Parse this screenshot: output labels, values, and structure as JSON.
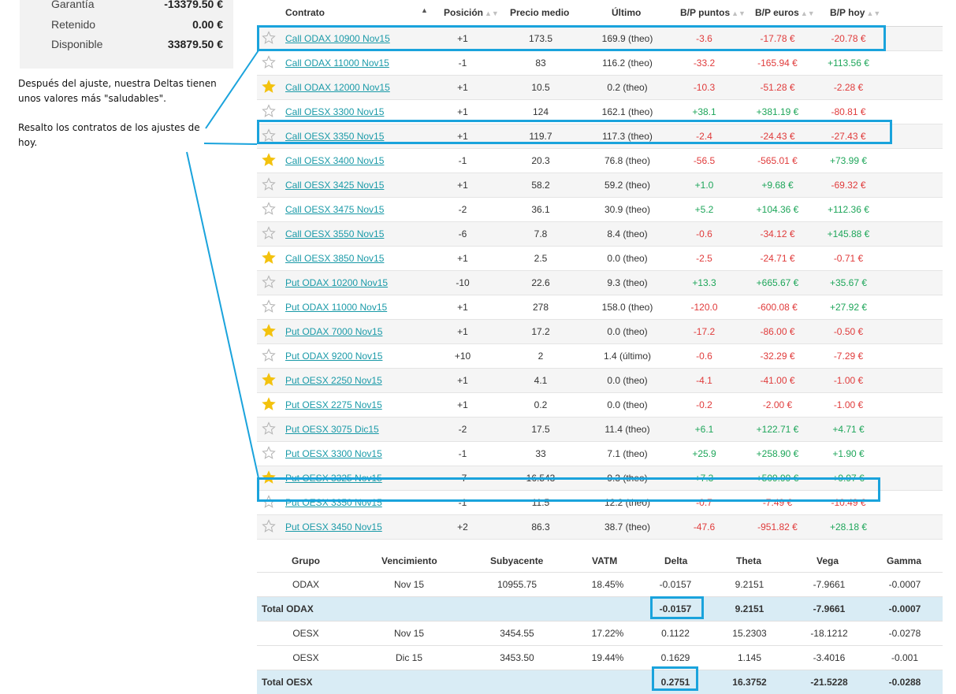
{
  "summary": [
    {
      "label": "Garantía",
      "value": "-13379.50 €"
    },
    {
      "label": "Retenido",
      "value": "0.00 €"
    },
    {
      "label": "Disponible",
      "value": "33879.50 €"
    }
  ],
  "annotation": {
    "line1": "Después del ajuste, nuestra Deltas tienen",
    "line2": "unos valores más \"saludables\".",
    "line3": "Resalto los contratos de los ajustes de",
    "line4": "hoy."
  },
  "positions": {
    "headers": {
      "contrato": "Contrato",
      "posicion": "Posición",
      "precio": "Precio medio",
      "ultimo": "Último",
      "bp_puntos": "B/P puntos",
      "bp_euros": "B/P euros",
      "bp_hoy": "B/P hoy"
    },
    "rows": [
      {
        "fav": false,
        "contrato": "Call ODAX 10900 Nov15",
        "pos": "+1",
        "precio": "173.5",
        "ultimo": "169.9 (theo)",
        "pts": "-3.6",
        "eur": "-17.78 €",
        "hoy": "-20.78 €",
        "pts_c": "neg",
        "eur_c": "neg",
        "hoy_c": "neg"
      },
      {
        "fav": false,
        "contrato": "Call ODAX 11000 Nov15",
        "pos": "-1",
        "precio": "83",
        "ultimo": "116.2 (theo)",
        "pts": "-33.2",
        "eur": "-165.94 €",
        "hoy": "+113.56 €",
        "pts_c": "neg",
        "eur_c": "neg",
        "hoy_c": "grn"
      },
      {
        "fav": true,
        "contrato": "Call ODAX 12000 Nov15",
        "pos": "+1",
        "precio": "10.5",
        "ultimo": "0.2 (theo)",
        "pts": "-10.3",
        "eur": "-51.28 €",
        "hoy": "-2.28 €",
        "pts_c": "neg",
        "eur_c": "neg",
        "hoy_c": "neg"
      },
      {
        "fav": false,
        "contrato": "Call OESX 3300 Nov15",
        "pos": "+1",
        "precio": "124",
        "ultimo": "162.1 (theo)",
        "pts": "+38.1",
        "eur": "+381.19 €",
        "hoy": "-80.81 €",
        "pts_c": "grn",
        "eur_c": "grn",
        "hoy_c": "neg"
      },
      {
        "fav": false,
        "contrato": "Call OESX 3350 Nov15",
        "pos": "+1",
        "precio": "119.7",
        "ultimo": "117.3 (theo)",
        "pts": "-2.4",
        "eur": "-24.43 €",
        "hoy": "-27.43 €",
        "pts_c": "neg",
        "eur_c": "neg",
        "hoy_c": "neg"
      },
      {
        "fav": true,
        "contrato": "Call OESX 3400 Nov15",
        "pos": "-1",
        "precio": "20.3",
        "ultimo": "76.8 (theo)",
        "pts": "-56.5",
        "eur": "-565.01 €",
        "hoy": "+73.99 €",
        "pts_c": "neg",
        "eur_c": "neg",
        "hoy_c": "grn"
      },
      {
        "fav": false,
        "contrato": "Call OESX 3425 Nov15",
        "pos": "+1",
        "precio": "58.2",
        "ultimo": "59.2 (theo)",
        "pts": "+1.0",
        "eur": "+9.68 €",
        "hoy": "-69.32 €",
        "pts_c": "grn",
        "eur_c": "grn",
        "hoy_c": "neg"
      },
      {
        "fav": false,
        "contrato": "Call OESX 3475 Nov15",
        "pos": "-2",
        "precio": "36.1",
        "ultimo": "30.9 (theo)",
        "pts": "+5.2",
        "eur": "+104.36 €",
        "hoy": "+112.36 €",
        "pts_c": "grn",
        "eur_c": "grn",
        "hoy_c": "grn"
      },
      {
        "fav": false,
        "contrato": "Call OESX 3550 Nov15",
        "pos": "-6",
        "precio": "7.8",
        "ultimo": "8.4 (theo)",
        "pts": "-0.6",
        "eur": "-34.12 €",
        "hoy": "+145.88 €",
        "pts_c": "neg",
        "eur_c": "neg",
        "hoy_c": "grn"
      },
      {
        "fav": true,
        "contrato": "Call OESX 3850 Nov15",
        "pos": "+1",
        "precio": "2.5",
        "ultimo": "0.0 (theo)",
        "pts": "-2.5",
        "eur": "-24.71 €",
        "hoy": "-0.71 €",
        "pts_c": "neg",
        "eur_c": "neg",
        "hoy_c": "neg"
      },
      {
        "fav": false,
        "contrato": "Put ODAX 10200 Nov15",
        "pos": "-10",
        "precio": "22.6",
        "ultimo": "9.3 (theo)",
        "pts": "+13.3",
        "eur": "+665.67 €",
        "hoy": "+35.67 €",
        "pts_c": "grn",
        "eur_c": "grn",
        "hoy_c": "grn"
      },
      {
        "fav": false,
        "contrato": "Put ODAX 11000 Nov15",
        "pos": "+1",
        "precio": "278",
        "ultimo": "158.0 (theo)",
        "pts": "-120.0",
        "eur": "-600.08 €",
        "hoy": "+27.92 €",
        "pts_c": "neg",
        "eur_c": "neg",
        "hoy_c": "grn"
      },
      {
        "fav": true,
        "contrato": "Put ODAX 7000 Nov15",
        "pos": "+1",
        "precio": "17.2",
        "ultimo": "0.0 (theo)",
        "pts": "-17.2",
        "eur": "-86.00 €",
        "hoy": "-0.50 €",
        "pts_c": "neg",
        "eur_c": "neg",
        "hoy_c": "neg"
      },
      {
        "fav": false,
        "contrato": "Put ODAX 9200 Nov15",
        "pos": "+10",
        "precio": "2",
        "ultimo": "1.4 (último)",
        "pts": "-0.6",
        "eur": "-32.29 €",
        "hoy": "-7.29 €",
        "pts_c": "neg",
        "eur_c": "neg",
        "hoy_c": "neg"
      },
      {
        "fav": true,
        "contrato": "Put OESX 2250 Nov15",
        "pos": "+1",
        "precio": "4.1",
        "ultimo": "0.0 (theo)",
        "pts": "-4.1",
        "eur": "-41.00 €",
        "hoy": "-1.00 €",
        "pts_c": "neg",
        "eur_c": "neg",
        "hoy_c": "neg"
      },
      {
        "fav": true,
        "contrato": "Put OESX 2275 Nov15",
        "pos": "+1",
        "precio": "0.2",
        "ultimo": "0.0 (theo)",
        "pts": "-0.2",
        "eur": "-2.00 €",
        "hoy": "-1.00 €",
        "pts_c": "neg",
        "eur_c": "neg",
        "hoy_c": "neg"
      },
      {
        "fav": false,
        "contrato": "Put OESX 3075 Dic15",
        "pos": "-2",
        "precio": "17.5",
        "ultimo": "11.4 (theo)",
        "pts": "+6.1",
        "eur": "+122.71 €",
        "hoy": "+4.71 €",
        "pts_c": "grn",
        "eur_c": "grn",
        "hoy_c": "grn"
      },
      {
        "fav": false,
        "contrato": "Put OESX 3300 Nov15",
        "pos": "-1",
        "precio": "33",
        "ultimo": "7.1 (theo)",
        "pts": "+25.9",
        "eur": "+258.90 €",
        "hoy": "+1.90 €",
        "pts_c": "grn",
        "eur_c": "grn",
        "hoy_c": "grn"
      },
      {
        "fav": true,
        "contrato": "Put OESX 3325 Nov15",
        "pos": "-7",
        "precio": "16.543",
        "ultimo": "9.3 (theo)",
        "pts": "+7.3",
        "eur": "+509.99 €",
        "hoy": "+9.97 €",
        "pts_c": "grn",
        "eur_c": "grn",
        "hoy_c": "grn"
      },
      {
        "fav": false,
        "contrato": "Put OESX 3350 Nov15",
        "pos": "-1",
        "precio": "11.5",
        "ultimo": "12.2 (theo)",
        "pts": "-0.7",
        "eur": "-7.49 €",
        "hoy": "-10.49 €",
        "pts_c": "neg",
        "eur_c": "neg",
        "hoy_c": "neg"
      },
      {
        "fav": false,
        "contrato": "Put OESX 3450 Nov15",
        "pos": "+2",
        "precio": "86.3",
        "ultimo": "38.7 (theo)",
        "pts": "-47.6",
        "eur": "-951.82 €",
        "hoy": "+28.18 €",
        "pts_c": "neg",
        "eur_c": "neg",
        "hoy_c": "grn"
      }
    ]
  },
  "greeks": {
    "headers": {
      "grupo": "Grupo",
      "venc": "Vencimiento",
      "sub": "Subyacente",
      "vatm": "VATM",
      "delta": "Delta",
      "theta": "Theta",
      "vega": "Vega",
      "gamma": "Gamma"
    },
    "rows": [
      {
        "total": false,
        "grupo": "ODAX",
        "venc": "Nov 15",
        "sub": "10955.75",
        "vatm": "18.45%",
        "delta": "-0.0157",
        "theta": "9.2151",
        "vega": "-7.9661",
        "gamma": "-0.0007"
      },
      {
        "total": true,
        "grupo": "Total ODAX",
        "venc": "",
        "sub": "",
        "vatm": "",
        "delta": "-0.0157",
        "theta": "9.2151",
        "vega": "-7.9661",
        "gamma": "-0.0007"
      },
      {
        "total": false,
        "grupo": "OESX",
        "venc": "Nov 15",
        "sub": "3454.55",
        "vatm": "17.22%",
        "delta": "0.1122",
        "theta": "15.2303",
        "vega": "-18.1212",
        "gamma": "-0.0278"
      },
      {
        "total": false,
        "grupo": "OESX",
        "venc": "Dic 15",
        "sub": "3453.50",
        "vatm": "19.44%",
        "delta": "0.1629",
        "theta": "1.145",
        "vega": "-3.4016",
        "gamma": "-0.001"
      },
      {
        "total": true,
        "grupo": "Total OESX",
        "venc": "",
        "sub": "",
        "vatm": "",
        "delta": "0.2751",
        "theta": "16.3752",
        "vega": "-21.5228",
        "gamma": "-0.0288"
      }
    ]
  },
  "colors": {
    "link": "#1a9aa8",
    "negative": "#e03b3b",
    "positive": "#1ea65a",
    "highlight": "#1aa3dc",
    "star_filled": "#f3c20e",
    "star_empty": "#b5b5b5"
  }
}
